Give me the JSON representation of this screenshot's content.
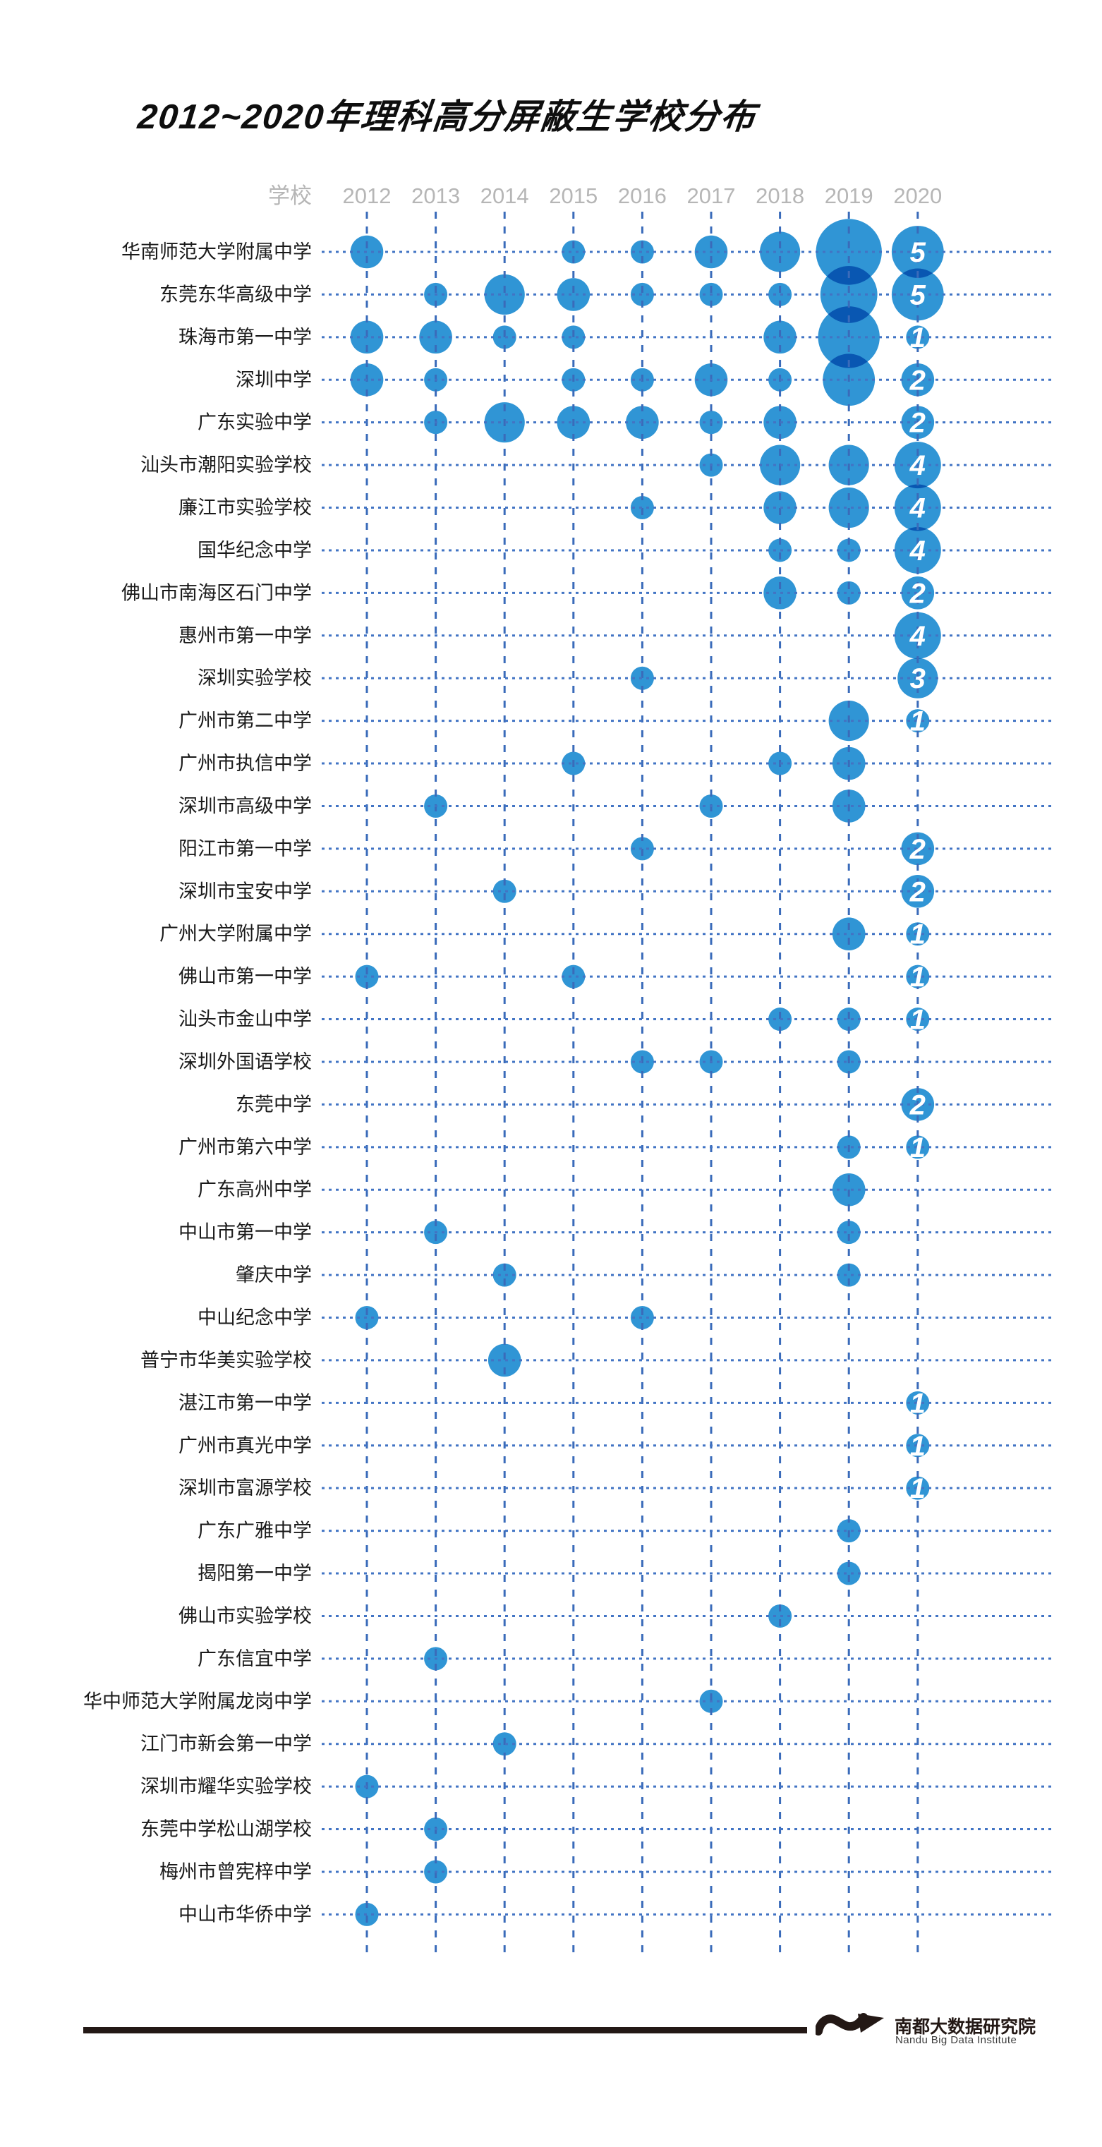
{
  "page": {
    "title": "2012~2020年理科高分屏蔽生学校分布"
  },
  "header": {
    "school_label": "学校",
    "years": [
      "2012",
      "2013",
      "2014",
      "2015",
      "2016",
      "2017",
      "2018",
      "2019",
      "2020"
    ]
  },
  "chart_data": {
    "type": "scatter",
    "subtype": "bubble-grid",
    "title": "2012~2020年理科高分屏蔽生学校分布",
    "xlabel": "年份",
    "ylabel": "学校",
    "columns": [
      "2012",
      "2013",
      "2014",
      "2015",
      "2016",
      "2017",
      "2018",
      "2019",
      "2020"
    ],
    "size_encoding": "bubble area proportional to student count; diameter = 33px * sqrt(count)",
    "labeled_year": "2020",
    "grid": "dashed blue vertical per year, dotted blue horizontal per school, drawn above bubbles",
    "legend": "none",
    "rows": [
      {
        "school": "华南师范大学附属中学",
        "counts": [
          2,
          0,
          0,
          1,
          1,
          2,
          3,
          8,
          5
        ]
      },
      {
        "school": "东莞东华高级中学",
        "counts": [
          0,
          1,
          3,
          2,
          1,
          1,
          1,
          6,
          5
        ]
      },
      {
        "school": "珠海市第一中学",
        "counts": [
          2,
          2,
          1,
          1,
          0,
          0,
          2,
          7,
          1
        ]
      },
      {
        "school": "深圳中学",
        "counts": [
          2,
          1,
          0,
          1,
          1,
          2,
          1,
          5,
          2
        ]
      },
      {
        "school": "广东实验中学",
        "counts": [
          0,
          1,
          3,
          2,
          2,
          1,
          2,
          0,
          2
        ]
      },
      {
        "school": "汕头市潮阳实验学校",
        "counts": [
          0,
          0,
          0,
          0,
          0,
          1,
          3,
          3,
          4
        ]
      },
      {
        "school": "廉江市实验学校",
        "counts": [
          0,
          0,
          0,
          0,
          1,
          0,
          2,
          3,
          4
        ]
      },
      {
        "school": "国华纪念中学",
        "counts": [
          0,
          0,
          0,
          0,
          0,
          0,
          1,
          1,
          4
        ]
      },
      {
        "school": "佛山市南海区石门中学",
        "counts": [
          0,
          0,
          0,
          0,
          0,
          0,
          2,
          1,
          2
        ]
      },
      {
        "school": "惠州市第一中学",
        "counts": [
          0,
          0,
          0,
          0,
          0,
          0,
          0,
          0,
          4
        ]
      },
      {
        "school": "深圳实验学校",
        "counts": [
          0,
          0,
          0,
          0,
          1,
          0,
          0,
          0,
          3
        ]
      },
      {
        "school": "广州市第二中学",
        "counts": [
          0,
          0,
          0,
          0,
          0,
          0,
          0,
          3,
          1
        ]
      },
      {
        "school": "广州市执信中学",
        "counts": [
          0,
          0,
          0,
          1,
          0,
          0,
          1,
          2,
          0
        ]
      },
      {
        "school": "深圳市高级中学",
        "counts": [
          0,
          1,
          0,
          0,
          0,
          1,
          0,
          2,
          0
        ]
      },
      {
        "school": "阳江市第一中学",
        "counts": [
          0,
          0,
          0,
          0,
          1,
          0,
          0,
          0,
          2
        ]
      },
      {
        "school": "深圳市宝安中学",
        "counts": [
          0,
          0,
          1,
          0,
          0,
          0,
          0,
          0,
          2
        ]
      },
      {
        "school": "广州大学附属中学",
        "counts": [
          0,
          0,
          0,
          0,
          0,
          0,
          0,
          2,
          1
        ]
      },
      {
        "school": "佛山市第一中学",
        "counts": [
          1,
          0,
          0,
          1,
          0,
          0,
          0,
          0,
          1
        ]
      },
      {
        "school": "汕头市金山中学",
        "counts": [
          0,
          0,
          0,
          0,
          0,
          0,
          1,
          1,
          1
        ]
      },
      {
        "school": "深圳外国语学校",
        "counts": [
          0,
          0,
          0,
          0,
          1,
          1,
          0,
          1,
          0
        ]
      },
      {
        "school": "东莞中学",
        "counts": [
          0,
          0,
          0,
          0,
          0,
          0,
          0,
          0,
          2
        ]
      },
      {
        "school": "广州市第六中学",
        "counts": [
          0,
          0,
          0,
          0,
          0,
          0,
          0,
          1,
          1
        ]
      },
      {
        "school": "广东高州中学",
        "counts": [
          0,
          0,
          0,
          0,
          0,
          0,
          0,
          2,
          0
        ]
      },
      {
        "school": "中山市第一中学",
        "counts": [
          0,
          1,
          0,
          0,
          0,
          0,
          0,
          1,
          0
        ]
      },
      {
        "school": "肇庆中学",
        "counts": [
          0,
          0,
          1,
          0,
          0,
          0,
          0,
          1,
          0
        ]
      },
      {
        "school": "中山纪念中学",
        "counts": [
          1,
          0,
          0,
          0,
          1,
          0,
          0,
          0,
          0
        ]
      },
      {
        "school": "普宁市华美实验学校",
        "counts": [
          0,
          0,
          2,
          0,
          0,
          0,
          0,
          0,
          0
        ]
      },
      {
        "school": "湛江市第一中学",
        "counts": [
          0,
          0,
          0,
          0,
          0,
          0,
          0,
          0,
          1
        ]
      },
      {
        "school": "广州市真光中学",
        "counts": [
          0,
          0,
          0,
          0,
          0,
          0,
          0,
          0,
          1
        ]
      },
      {
        "school": "深圳市富源学校",
        "counts": [
          0,
          0,
          0,
          0,
          0,
          0,
          0,
          0,
          1
        ]
      },
      {
        "school": "广东广雅中学",
        "counts": [
          0,
          0,
          0,
          0,
          0,
          0,
          0,
          1,
          0
        ]
      },
      {
        "school": "揭阳第一中学",
        "counts": [
          0,
          0,
          0,
          0,
          0,
          0,
          0,
          1,
          0
        ]
      },
      {
        "school": "佛山市实验学校",
        "counts": [
          0,
          0,
          0,
          0,
          0,
          0,
          1,
          0,
          0
        ]
      },
      {
        "school": "广东信宜中学",
        "counts": [
          0,
          1,
          0,
          0,
          0,
          0,
          0,
          0,
          0
        ]
      },
      {
        "school": "华中师范大学附属龙岗中学",
        "counts": [
          0,
          0,
          0,
          0,
          0,
          1,
          0,
          0,
          0
        ]
      },
      {
        "school": "江门市新会第一中学",
        "counts": [
          0,
          0,
          1,
          0,
          0,
          0,
          0,
          0,
          0
        ]
      },
      {
        "school": "深圳市耀华实验学校",
        "counts": [
          1,
          0,
          0,
          0,
          0,
          0,
          0,
          0,
          0
        ]
      },
      {
        "school": "东莞中学松山湖学校",
        "counts": [
          0,
          1,
          0,
          0,
          0,
          0,
          0,
          0,
          0
        ]
      },
      {
        "school": "梅州市曾宪梓中学",
        "counts": [
          0,
          1,
          0,
          0,
          0,
          0,
          0,
          0,
          0
        ]
      },
      {
        "school": "中山市华侨中学",
        "counts": [
          1,
          0,
          0,
          0,
          0,
          0,
          0,
          0,
          0
        ]
      }
    ],
    "colors": {
      "bubble": "#3095D5",
      "bubble_overlap": "#1272B8",
      "grid_vertical": "#3A6BBA",
      "grid_horizontal": "#4274C4",
      "value_label": "#FFFFFF",
      "header_text": "#B6B6B6",
      "school_text": "#1A1A1A",
      "title_text": "#0E0E0E",
      "footer": "#231815"
    }
  },
  "footer": {
    "brand_cn": "南都大数据研究院",
    "brand_en": "Nandu Big Data Institute"
  }
}
